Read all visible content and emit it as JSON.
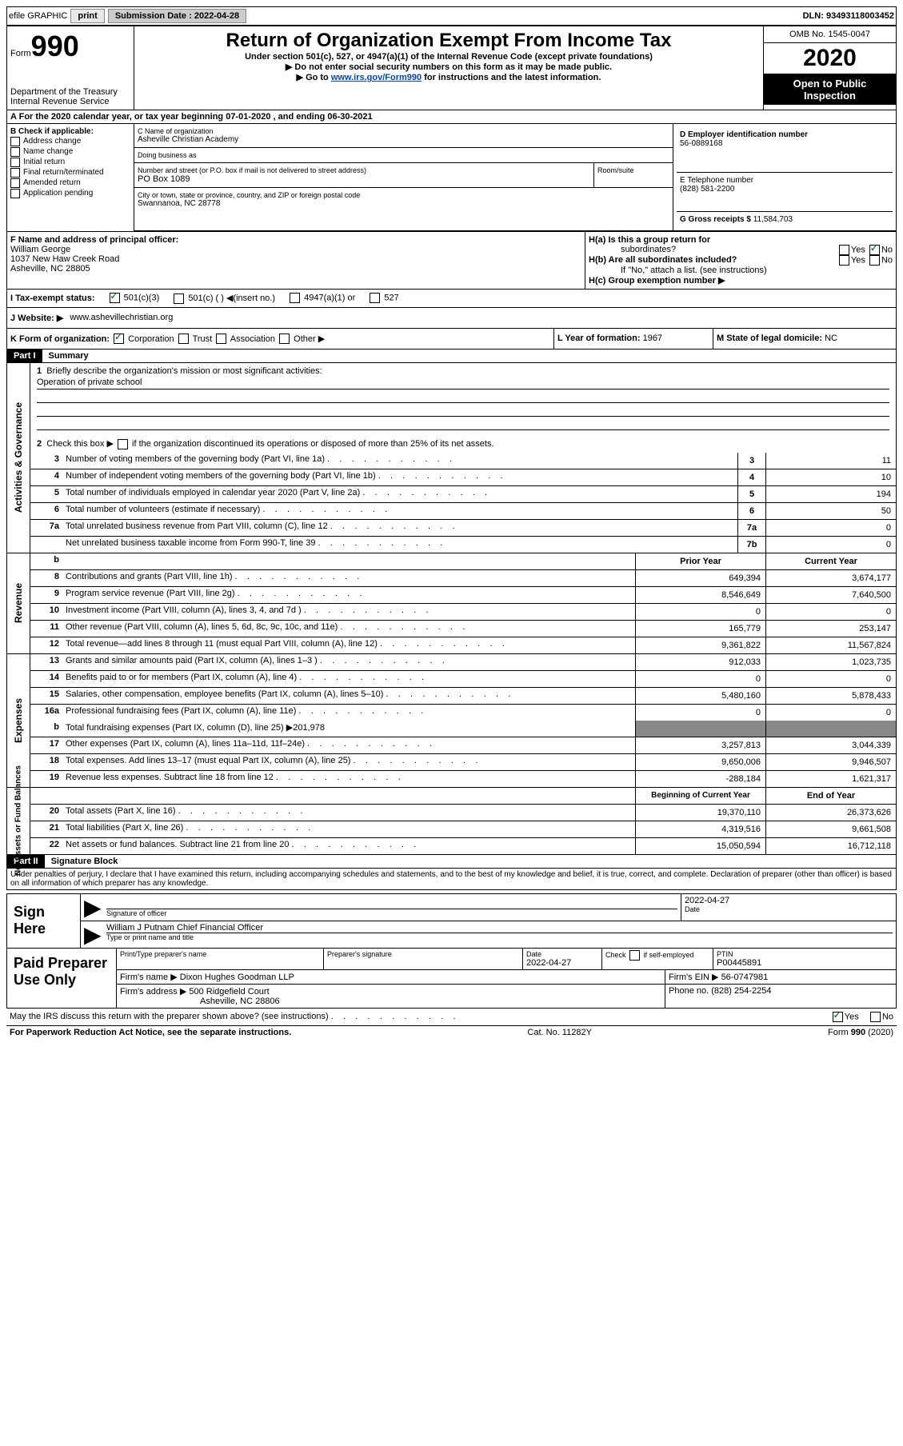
{
  "topbar": {
    "efile_label": "efile GRAPHIC",
    "print_label": "print",
    "submission_label": "Submission Date :",
    "submission_date": "2022-04-28",
    "dln_label": "DLN:",
    "dln": "93493118003452"
  },
  "header": {
    "form_label": "Form",
    "form_number": "990",
    "title": "Return of Organization Exempt From Income Tax",
    "subtitle": "Under section 501(c), 527, or 4947(a)(1) of the Internal Revenue Code (except private foundations)",
    "instruction1": "Do not enter social security numbers on this form as it may be made public.",
    "instruction2_prefix": "Go to ",
    "instruction2_link": "www.irs.gov/Form990",
    "instruction2_suffix": " for instructions and the latest information.",
    "dept": "Department of the Treasury",
    "irs": "Internal Revenue Service",
    "omb_label": "OMB No. 1545-0047",
    "year": "2020",
    "inspection": "Open to Public Inspection"
  },
  "section_a": {
    "text": "For the 2020 calendar year, or tax year beginning 07-01-2020    , and ending 06-30-2021"
  },
  "section_b": {
    "label": "B Check if applicable:",
    "items": [
      "Address change",
      "Name change",
      "Initial return",
      "Final return/terminated",
      "Amended return",
      "Application pending"
    ]
  },
  "section_c": {
    "name_label": "C Name of organization",
    "name": "Asheville Christian Academy",
    "dba_label": "Doing business as",
    "addr_label": "Number and street (or P.O. box if mail is not delivered to street address)",
    "addr": "PO Box 1089",
    "suite_label": "Room/suite",
    "city_label": "City or town, state or province, country, and ZIP or foreign postal code",
    "city": "Swannanoa, NC  28778"
  },
  "section_d": {
    "ein_label": "D Employer identification number",
    "ein": "56-0889168",
    "phone_label": "E Telephone number",
    "phone": "(828) 581-2200",
    "gross_label": "G Gross receipts $",
    "gross": "11,584,703"
  },
  "section_f": {
    "label": "F Name and address of principal officer:",
    "name": "William George",
    "addr1": "1037 New Haw Creek Road",
    "addr2": "Asheville, NC  28805"
  },
  "section_h": {
    "ha_label": "H(a)  Is this a group return for",
    "ha_sub": "subordinates?",
    "hb_label": "H(b)  Are all subordinates included?",
    "hb_note": "If \"No,\" attach a list. (see instructions)",
    "hc_label": "H(c)  Group exemption number ▶",
    "yes": "Yes",
    "no": "No"
  },
  "section_i": {
    "label": "I    Tax-exempt status:",
    "opts": [
      "501(c)(3)",
      "501(c) (   ) ◀(insert no.)",
      "4947(a)(1) or",
      "527"
    ]
  },
  "section_j": {
    "label": "J   Website: ▶",
    "value": "www.ashevillechristian.org"
  },
  "section_k": {
    "label": "K Form of organization:",
    "opts": [
      "Corporation",
      "Trust",
      "Association",
      "Other ▶"
    ],
    "l_label": "L Year of formation:",
    "l_value": "1967",
    "m_label": "M State of legal domicile:",
    "m_value": "NC"
  },
  "part1": {
    "header": "Part I",
    "title": "Summary"
  },
  "governance": {
    "tab": "Activities & Governance",
    "line1_label": "Briefly describe the organization's mission or most significant activities:",
    "line1_value": "Operation of private school",
    "line2": "Check this box ▶       if the organization discontinued its operations or disposed of more than 25% of its net assets.",
    "lines": [
      {
        "num": "3",
        "desc": "Number of voting members of the governing body (Part VI, line 1a)",
        "box": "3",
        "val": "11"
      },
      {
        "num": "4",
        "desc": "Number of independent voting members of the governing body (Part VI, line 1b)",
        "box": "4",
        "val": "10"
      },
      {
        "num": "5",
        "desc": "Total number of individuals employed in calendar year 2020 (Part V, line 2a)",
        "box": "5",
        "val": "194"
      },
      {
        "num": "6",
        "desc": "Total number of volunteers (estimate if necessary)",
        "box": "6",
        "val": "50"
      },
      {
        "num": "7a",
        "desc": "Total unrelated business revenue from Part VIII, column (C), line 12",
        "box": "7a",
        "val": "0"
      },
      {
        "num": "",
        "desc": "Net unrelated business taxable income from Form 990-T, line 39",
        "box": "7b",
        "val": "0"
      }
    ]
  },
  "revenue": {
    "tab": "Revenue",
    "header_prior": "Prior Year",
    "header_current": "Current Year",
    "lines": [
      {
        "num": "8",
        "desc": "Contributions and grants (Part VIII, line 1h)",
        "prior": "649,394",
        "current": "3,674,177"
      },
      {
        "num": "9",
        "desc": "Program service revenue (Part VIII, line 2g)",
        "prior": "8,546,649",
        "current": "7,640,500"
      },
      {
        "num": "10",
        "desc": "Investment income (Part VIII, column (A), lines 3, 4, and 7d )",
        "prior": "0",
        "current": "0"
      },
      {
        "num": "11",
        "desc": "Other revenue (Part VIII, column (A), lines 5, 6d, 8c, 9c, 10c, and 11e)",
        "prior": "165,779",
        "current": "253,147"
      },
      {
        "num": "12",
        "desc": "Total revenue—add lines 8 through 11 (must equal Part VIII, column (A), line 12)",
        "prior": "9,361,822",
        "current": "11,567,824"
      }
    ]
  },
  "expenses": {
    "tab": "Expenses",
    "lines": [
      {
        "num": "13",
        "desc": "Grants and similar amounts paid (Part IX, column (A), lines 1–3 )",
        "prior": "912,033",
        "current": "1,023,735"
      },
      {
        "num": "14",
        "desc": "Benefits paid to or for members (Part IX, column (A), line 4)",
        "prior": "0",
        "current": "0"
      },
      {
        "num": "15",
        "desc": "Salaries, other compensation, employee benefits (Part IX, column (A), lines 5–10)",
        "prior": "5,480,160",
        "current": "5,878,433"
      },
      {
        "num": "16a",
        "desc": "Professional fundraising fees (Part IX, column (A), line 11e)",
        "prior": "0",
        "current": "0"
      }
    ],
    "line_b": {
      "num": "b",
      "desc": "Total fundraising expenses (Part IX, column (D), line 25) ▶",
      "val": "201,978"
    },
    "lines2": [
      {
        "num": "17",
        "desc": "Other expenses (Part IX, column (A), lines 11a–11d, 11f–24e)",
        "prior": "3,257,813",
        "current": "3,044,339"
      },
      {
        "num": "18",
        "desc": "Total expenses. Add lines 13–17 (must equal Part IX, column (A), line 25)",
        "prior": "9,650,006",
        "current": "9,946,507"
      },
      {
        "num": "19",
        "desc": "Revenue less expenses. Subtract line 18 from line 12",
        "prior": "-288,184",
        "current": "1,621,317"
      }
    ]
  },
  "netassets": {
    "tab": "Net Assets or Fund Balances",
    "header_begin": "Beginning of Current Year",
    "header_end": "End of Year",
    "lines": [
      {
        "num": "20",
        "desc": "Total assets (Part X, line 16)",
        "begin": "19,370,110",
        "end": "26,373,626"
      },
      {
        "num": "21",
        "desc": "Total liabilities (Part X, line 26)",
        "begin": "4,319,516",
        "end": "9,661,508"
      },
      {
        "num": "22",
        "desc": "Net assets or fund balances. Subtract line 21 from line 20",
        "begin": "15,050,594",
        "end": "16,712,118"
      }
    ]
  },
  "part2": {
    "header": "Part II",
    "title": "Signature Block",
    "declaration": "Under penalties of perjury, I declare that I have examined this return, including accompanying schedules and statements, and to the best of my knowledge and belief, it is true, correct, and complete. Declaration of preparer (other than officer) is based on all information of which preparer has any knowledge."
  },
  "sign": {
    "label": "Sign Here",
    "sig_officer": "Signature of officer",
    "date_label": "Date",
    "date": "2022-04-27",
    "name": "William J Putnam  Chief Financial Officer",
    "name_label": "Type or print name and title"
  },
  "preparer": {
    "label": "Paid Preparer Use Only",
    "print_label": "Print/Type preparer's name",
    "sig_label": "Preparer's signature",
    "date_label": "Date",
    "date": "2022-04-27",
    "check_label": "Check        if self-employed",
    "ptin_label": "PTIN",
    "ptin": "P00445891",
    "firm_name_label": "Firm's name      ▶",
    "firm_name": "Dixon Hughes Goodman LLP",
    "firm_ein_label": "Firm's EIN ▶",
    "firm_ein": "56-0747981",
    "firm_addr_label": "Firm's address ▶",
    "firm_addr1": "500 Ridgefield Court",
    "firm_addr2": "Asheville, NC  28806",
    "phone_label": "Phone no.",
    "phone": "(828) 254-2254"
  },
  "footer": {
    "discuss": "May the IRS discuss this return with the preparer shown above? (see instructions)",
    "yes": "Yes",
    "no": "No",
    "pra": "For Paperwork Reduction Act Notice, see the separate instructions.",
    "catno": "Cat. No. 11282Y",
    "form": "Form 990 (2020)"
  }
}
